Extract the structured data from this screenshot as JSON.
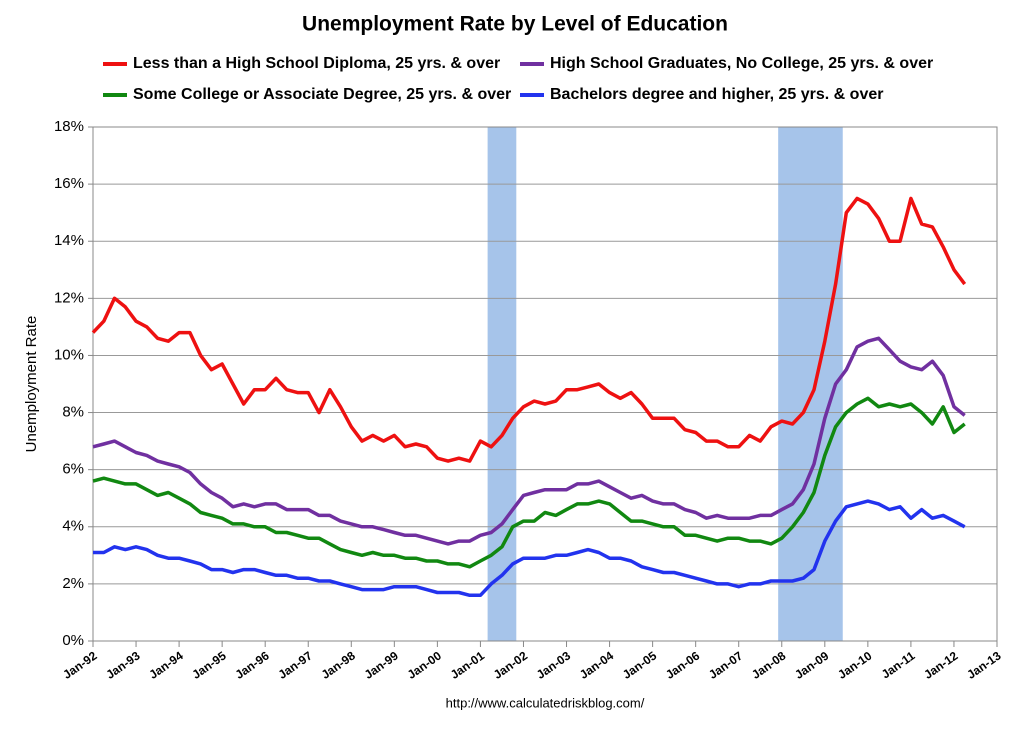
{
  "chart_data": {
    "type": "line",
    "title": "Unemployment Rate by Level of Education",
    "y_label": "Unemployment Rate",
    "source": "http://www.calculatedriskblog.com/",
    "x": [
      "1992-01",
      "1992-04",
      "1992-07",
      "1992-10",
      "1993-01",
      "1993-04",
      "1993-07",
      "1993-10",
      "1994-01",
      "1994-04",
      "1994-07",
      "1994-10",
      "1995-01",
      "1995-04",
      "1995-07",
      "1995-10",
      "1996-01",
      "1996-04",
      "1996-07",
      "1996-10",
      "1997-01",
      "1997-04",
      "1997-07",
      "1997-10",
      "1998-01",
      "1998-04",
      "1998-07",
      "1998-10",
      "1999-01",
      "1999-04",
      "1999-07",
      "1999-10",
      "2000-01",
      "2000-04",
      "2000-07",
      "2000-10",
      "2001-01",
      "2001-04",
      "2001-07",
      "2001-10",
      "2002-01",
      "2002-04",
      "2002-07",
      "2002-10",
      "2003-01",
      "2003-04",
      "2003-07",
      "2003-10",
      "2004-01",
      "2004-04",
      "2004-07",
      "2004-10",
      "2005-01",
      "2005-04",
      "2005-07",
      "2005-10",
      "2006-01",
      "2006-04",
      "2006-07",
      "2006-10",
      "2007-01",
      "2007-04",
      "2007-07",
      "2007-10",
      "2008-01",
      "2008-04",
      "2008-07",
      "2008-10",
      "2009-01",
      "2009-04",
      "2009-07",
      "2009-10",
      "2010-01",
      "2010-04",
      "2010-07",
      "2010-10",
      "2011-01",
      "2011-04",
      "2011-07",
      "2011-10",
      "2012-01",
      "2012-04"
    ],
    "series": [
      {
        "name": "Less than a High School Diploma, 25 yrs. & over",
        "color": "#ee1111",
        "values": [
          10.8,
          11.2,
          12.0,
          11.7,
          11.2,
          11.0,
          10.6,
          10.5,
          10.8,
          10.8,
          10.0,
          9.5,
          9.7,
          9.0,
          8.3,
          8.8,
          8.8,
          9.2,
          8.8,
          8.7,
          8.7,
          8.0,
          8.8,
          8.2,
          7.5,
          7.0,
          7.2,
          7.0,
          7.2,
          6.8,
          6.9,
          6.8,
          6.4,
          6.3,
          6.4,
          6.3,
          7.0,
          6.8,
          7.2,
          7.8,
          8.2,
          8.4,
          8.3,
          8.4,
          8.8,
          8.8,
          8.9,
          9.0,
          8.7,
          8.5,
          8.7,
          8.3,
          7.8,
          7.8,
          7.8,
          7.4,
          7.3,
          7.0,
          7.0,
          6.8,
          6.8,
          7.2,
          7.0,
          7.5,
          7.7,
          7.6,
          8.0,
          8.8,
          10.5,
          12.5,
          15.0,
          15.5,
          15.3,
          14.8,
          14.0,
          14.0,
          15.5,
          14.6,
          14.5,
          13.8,
          13.0,
          12.5
        ]
      },
      {
        "name": "High School Graduates, No College, 25 yrs. & over",
        "color": "#7030a0",
        "values": [
          6.8,
          6.9,
          7.0,
          6.8,
          6.6,
          6.5,
          6.3,
          6.2,
          6.1,
          5.9,
          5.5,
          5.2,
          5.0,
          4.7,
          4.8,
          4.7,
          4.8,
          4.8,
          4.6,
          4.6,
          4.6,
          4.4,
          4.4,
          4.2,
          4.1,
          4.0,
          4.0,
          3.9,
          3.8,
          3.7,
          3.7,
          3.6,
          3.5,
          3.4,
          3.5,
          3.5,
          3.7,
          3.8,
          4.1,
          4.6,
          5.1,
          5.2,
          5.3,
          5.3,
          5.3,
          5.5,
          5.5,
          5.6,
          5.4,
          5.2,
          5.0,
          5.1,
          4.9,
          4.8,
          4.8,
          4.6,
          4.5,
          4.3,
          4.4,
          4.3,
          4.3,
          4.3,
          4.4,
          4.4,
          4.6,
          4.8,
          5.3,
          6.2,
          7.8,
          9.0,
          9.5,
          10.3,
          10.5,
          10.6,
          10.2,
          9.8,
          9.6,
          9.5,
          9.8,
          9.3,
          8.2,
          7.9
        ]
      },
      {
        "name": "Some College or Associate Degree, 25 yrs. & over",
        "color": "#118811",
        "values": [
          5.6,
          5.7,
          5.6,
          5.5,
          5.5,
          5.3,
          5.1,
          5.2,
          5.0,
          4.8,
          4.5,
          4.4,
          4.3,
          4.1,
          4.1,
          4.0,
          4.0,
          3.8,
          3.8,
          3.7,
          3.6,
          3.6,
          3.4,
          3.2,
          3.1,
          3.0,
          3.1,
          3.0,
          3.0,
          2.9,
          2.9,
          2.8,
          2.8,
          2.7,
          2.7,
          2.6,
          2.8,
          3.0,
          3.3,
          4.0,
          4.2,
          4.2,
          4.5,
          4.4,
          4.6,
          4.8,
          4.8,
          4.9,
          4.8,
          4.5,
          4.2,
          4.2,
          4.1,
          4.0,
          4.0,
          3.7,
          3.7,
          3.6,
          3.5,
          3.6,
          3.6,
          3.5,
          3.5,
          3.4,
          3.6,
          4.0,
          4.5,
          5.2,
          6.5,
          7.5,
          8.0,
          8.3,
          8.5,
          8.2,
          8.3,
          8.2,
          8.3,
          8.0,
          7.6,
          8.2,
          7.3,
          7.6
        ]
      },
      {
        "name": "Bachelors degree and higher, 25 yrs. & over",
        "color": "#2233ee",
        "values": [
          3.1,
          3.1,
          3.3,
          3.2,
          3.3,
          3.2,
          3.0,
          2.9,
          2.9,
          2.8,
          2.7,
          2.5,
          2.5,
          2.4,
          2.5,
          2.5,
          2.4,
          2.3,
          2.3,
          2.2,
          2.2,
          2.1,
          2.1,
          2.0,
          1.9,
          1.8,
          1.8,
          1.8,
          1.9,
          1.9,
          1.9,
          1.8,
          1.7,
          1.7,
          1.7,
          1.6,
          1.6,
          2.0,
          2.3,
          2.7,
          2.9,
          2.9,
          2.9,
          3.0,
          3.0,
          3.1,
          3.2,
          3.1,
          2.9,
          2.9,
          2.8,
          2.6,
          2.5,
          2.4,
          2.4,
          2.3,
          2.2,
          2.1,
          2.0,
          2.0,
          1.9,
          2.0,
          2.0,
          2.1,
          2.1,
          2.1,
          2.2,
          2.5,
          3.5,
          4.2,
          4.7,
          4.8,
          4.9,
          4.8,
          4.6,
          4.7,
          4.3,
          4.6,
          4.3,
          4.4,
          4.2,
          4.0
        ]
      }
    ],
    "recessions": [
      {
        "start": "2001-03",
        "end": "2001-11"
      },
      {
        "start": "2007-12",
        "end": "2009-06"
      }
    ],
    "recession_color": "#a6c4ea",
    "xlim": [
      "1992-01",
      "2013-01"
    ],
    "xticks": [
      {
        "value": "1992-01",
        "label": "Jan-92"
      },
      {
        "value": "1993-01",
        "label": "Jan-93"
      },
      {
        "value": "1994-01",
        "label": "Jan-94"
      },
      {
        "value": "1995-01",
        "label": "Jan-95"
      },
      {
        "value": "1996-01",
        "label": "Jan-96"
      },
      {
        "value": "1997-01",
        "label": "Jan-97"
      },
      {
        "value": "1998-01",
        "label": "Jan-98"
      },
      {
        "value": "1999-01",
        "label": "Jan-99"
      },
      {
        "value": "2000-01",
        "label": "Jan-00"
      },
      {
        "value": "2001-01",
        "label": "Jan-01"
      },
      {
        "value": "2002-01",
        "label": "Jan-02"
      },
      {
        "value": "2003-01",
        "label": "Jan-03"
      },
      {
        "value": "2004-01",
        "label": "Jan-04"
      },
      {
        "value": "2005-01",
        "label": "Jan-05"
      },
      {
        "value": "2006-01",
        "label": "Jan-06"
      },
      {
        "value": "2007-01",
        "label": "Jan-07"
      },
      {
        "value": "2008-01",
        "label": "Jan-08"
      },
      {
        "value": "2009-01",
        "label": "Jan-09"
      },
      {
        "value": "2010-01",
        "label": "Jan-10"
      },
      {
        "value": "2011-01",
        "label": "Jan-11"
      },
      {
        "value": "2012-01",
        "label": "Jan-12"
      },
      {
        "value": "2013-01",
        "label": "Jan-13"
      }
    ],
    "ylim": [
      0,
      18
    ],
    "yticks": [
      {
        "value": 0,
        "label": "0%"
      },
      {
        "value": 2,
        "label": "2%"
      },
      {
        "value": 4,
        "label": "4%"
      },
      {
        "value": 6,
        "label": "6%"
      },
      {
        "value": 8,
        "label": "8%"
      },
      {
        "value": 10,
        "label": "10%"
      },
      {
        "value": 12,
        "label": "12%"
      },
      {
        "value": 14,
        "label": "14%"
      },
      {
        "value": 16,
        "label": "16%"
      },
      {
        "value": 18,
        "label": "18%"
      }
    ],
    "grid": true
  }
}
